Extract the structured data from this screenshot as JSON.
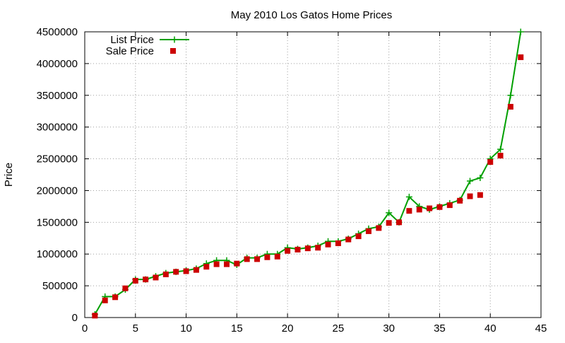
{
  "chart_data": {
    "type": "line",
    "title": "May 2010 Los Gatos Home Prices",
    "xlabel": "",
    "ylabel": "Price",
    "xlim": [
      0,
      45
    ],
    "ylim": [
      0,
      4500000
    ],
    "xticks": [
      0,
      5,
      10,
      15,
      20,
      25,
      30,
      35,
      40,
      45
    ],
    "yticks": [
      0,
      500000,
      1000000,
      1500000,
      2000000,
      2500000,
      3000000,
      3500000,
      4000000,
      4500000
    ],
    "grid": true,
    "legend_position": "top-left",
    "x": [
      1,
      2,
      3,
      4,
      5,
      6,
      7,
      8,
      9,
      10,
      11,
      12,
      13,
      14,
      15,
      16,
      17,
      18,
      19,
      20,
      21,
      22,
      23,
      24,
      25,
      26,
      27,
      28,
      29,
      30,
      31,
      32,
      33,
      34,
      35,
      36,
      37,
      38,
      39,
      40,
      41,
      42,
      43
    ],
    "series": [
      {
        "name": "List Price",
        "style": "linespoints",
        "marker": "plus",
        "color": "#00a000",
        "values": [
          50000,
          330000,
          330000,
          440000,
          600000,
          600000,
          650000,
          700000,
          720000,
          740000,
          770000,
          850000,
          900000,
          900000,
          830000,
          940000,
          940000,
          1000000,
          1000000,
          1100000,
          1080000,
          1100000,
          1130000,
          1200000,
          1200000,
          1240000,
          1320000,
          1400000,
          1430000,
          1650000,
          1500000,
          1900000,
          1750000,
          1700000,
          1750000,
          1800000,
          1850000,
          2150000,
          2200000,
          2500000,
          2650000,
          3500000,
          4500000
        ]
      },
      {
        "name": "Sale Price",
        "style": "points",
        "marker": "square",
        "color": "#cc0000",
        "values": [
          30000,
          270000,
          320000,
          460000,
          580000,
          600000,
          630000,
          680000,
          720000,
          730000,
          750000,
          800000,
          840000,
          840000,
          850000,
          920000,
          920000,
          950000,
          960000,
          1050000,
          1070000,
          1090000,
          1100000,
          1150000,
          1170000,
          1230000,
          1280000,
          1360000,
          1410000,
          1490000,
          1500000,
          1680000,
          1700000,
          1720000,
          1740000,
          1770000,
          1840000,
          1910000,
          1930000,
          2450000,
          2550000,
          3320000,
          4100000
        ]
      }
    ]
  }
}
